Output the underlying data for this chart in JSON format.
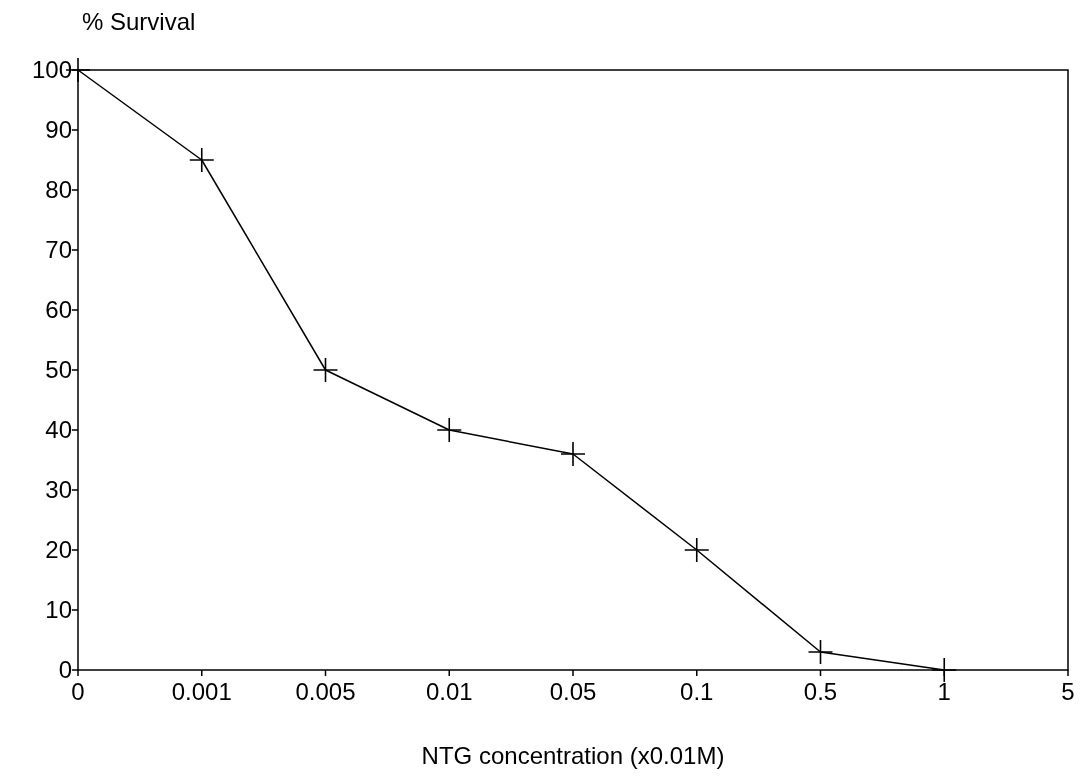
{
  "chart_data": {
    "type": "line",
    "ylabel": "% Survival",
    "xlabel": "NTG concentration (x0.01M)",
    "categories": [
      "0",
      "0.001",
      "0.005",
      "0.01",
      "0.05",
      "0.1",
      "0.5",
      "1",
      "5"
    ],
    "series": [
      {
        "color": "#000000",
        "values": [
          100,
          85,
          50,
          40,
          36,
          20,
          3,
          0,
          null
        ]
      }
    ],
    "ylim": [
      0,
      100
    ],
    "yticks": [
      0,
      10,
      20,
      30,
      40,
      50,
      60,
      70,
      80,
      90,
      100
    ],
    "grid": false,
    "marker": "cross",
    "line_style": "solid"
  }
}
